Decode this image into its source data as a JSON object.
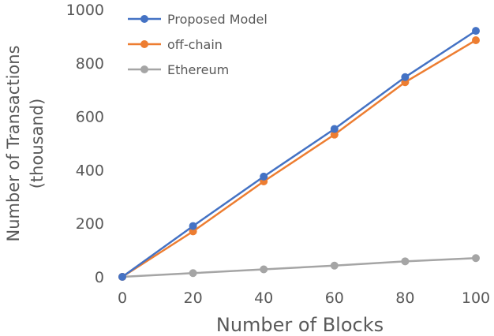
{
  "chart_data": {
    "type": "line",
    "title": "",
    "xlabel": "Number of Blocks",
    "ylabel": [
      "Number of Transactions",
      "(thousand)"
    ],
    "x": [
      0,
      20,
      40,
      60,
      80,
      100
    ],
    "xlim": [
      0,
      100
    ],
    "ylim": [
      0,
      1000
    ],
    "xticks": [
      0,
      20,
      40,
      60,
      80,
      100
    ],
    "yticks": [
      0,
      200,
      400,
      600,
      800,
      1000
    ],
    "grid": false,
    "legend_position": "top-left",
    "series": [
      {
        "name": "Proposed Model",
        "color": "#4472C4",
        "values": [
          0,
          190,
          375,
          553,
          747,
          920
        ]
      },
      {
        "name": "off-chain",
        "color": "#ED7D31",
        "values": [
          0,
          170,
          357,
          532,
          728,
          885
        ]
      },
      {
        "name": "Ethereum",
        "color": "#A5A5A5",
        "values": [
          0,
          14,
          28,
          42,
          58,
          70
        ]
      }
    ]
  }
}
